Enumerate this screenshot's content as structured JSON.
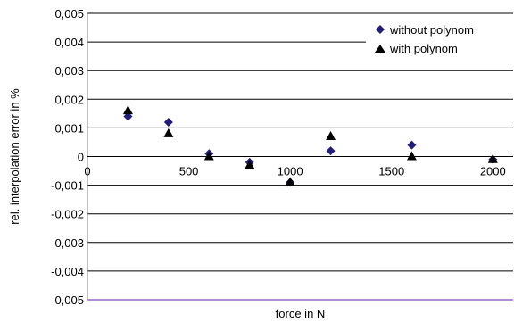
{
  "chart_data": {
    "type": "scatter",
    "xlabel": "force in N",
    "ylabel": "rel. interpolation error in %",
    "xlim": [
      0,
      2100
    ],
    "ylim": [
      -0.005,
      0.005
    ],
    "x_ticks": [
      "0",
      "500",
      "1000",
      "1500",
      "2000"
    ],
    "y_ticks": [
      "0,005",
      "0,004",
      "0,003",
      "0,002",
      "0,001",
      "0",
      "-0,001",
      "-0,002",
      "-0,003",
      "-0,004",
      "-0,005"
    ],
    "grid": "horizontal",
    "legend_position": "top-right",
    "series": [
      {
        "name": "without polynom",
        "marker": "diamond",
        "color": "#1f1f7a",
        "points": [
          {
            "x": 200,
            "y": 0.0014
          },
          {
            "x": 400,
            "y": 0.0012
          },
          {
            "x": 600,
            "y": 0.0001
          },
          {
            "x": 800,
            "y": -0.0002
          },
          {
            "x": 1000,
            "y": -0.0009
          },
          {
            "x": 1200,
            "y": 0.0002
          },
          {
            "x": 1600,
            "y": 0.0004
          },
          {
            "x": 2000,
            "y": -0.0001
          }
        ]
      },
      {
        "name": "with polynom",
        "marker": "triangle",
        "color": "#000000",
        "points": [
          {
            "x": 200,
            "y": 0.0016
          },
          {
            "x": 400,
            "y": 0.0008
          },
          {
            "x": 600,
            "y": 0.0
          },
          {
            "x": 800,
            "y": -0.0003
          },
          {
            "x": 1000,
            "y": -0.0009
          },
          {
            "x": 1200,
            "y": 0.0007
          },
          {
            "x": 1600,
            "y": 0.0
          },
          {
            "x": 2000,
            "y": -0.0001
          }
        ]
      }
    ]
  }
}
